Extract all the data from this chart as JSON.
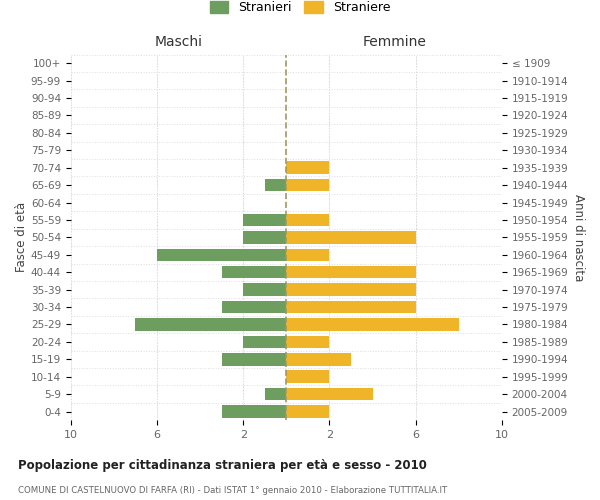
{
  "age_groups": [
    "0-4",
    "5-9",
    "10-14",
    "15-19",
    "20-24",
    "25-29",
    "30-34",
    "35-39",
    "40-44",
    "45-49",
    "50-54",
    "55-59",
    "60-64",
    "65-69",
    "70-74",
    "75-79",
    "80-84",
    "85-89",
    "90-94",
    "95-99",
    "100+"
  ],
  "birth_years": [
    "2005-2009",
    "2000-2004",
    "1995-1999",
    "1990-1994",
    "1985-1989",
    "1980-1984",
    "1975-1979",
    "1970-1974",
    "1965-1969",
    "1960-1964",
    "1955-1959",
    "1950-1954",
    "1945-1949",
    "1940-1944",
    "1935-1939",
    "1930-1934",
    "1925-1929",
    "1920-1924",
    "1915-1919",
    "1910-1914",
    "≤ 1909"
  ],
  "maschi": [
    3,
    1,
    0,
    3,
    2,
    7,
    3,
    2,
    3,
    6,
    2,
    2,
    0,
    1,
    0,
    0,
    0,
    0,
    0,
    0,
    0
  ],
  "femmine": [
    2,
    4,
    2,
    3,
    2,
    8,
    6,
    6,
    6,
    2,
    6,
    2,
    0,
    2,
    2,
    0,
    0,
    0,
    0,
    0,
    0
  ],
  "color_maschi": "#6e9e5f",
  "color_femmine": "#f0b429",
  "dashed_line_color": "#9e9960",
  "title": "Popolazione per cittadinanza straniera per età e sesso - 2010",
  "subtitle": "COMUNE DI CASTELNUOVO DI FARFA (RI) - Dati ISTAT 1° gennaio 2010 - Elaborazione TUTTITALIA.IT",
  "xlabel_left": "Maschi",
  "xlabel_right": "Femmine",
  "ylabel_left": "Fasce di età",
  "ylabel_right": "Anni di nascita",
  "legend_maschi": "Stranieri",
  "legend_femmine": "Straniere",
  "xlim": 10,
  "bg_color": "#ffffff",
  "grid_color": "#dddddd"
}
